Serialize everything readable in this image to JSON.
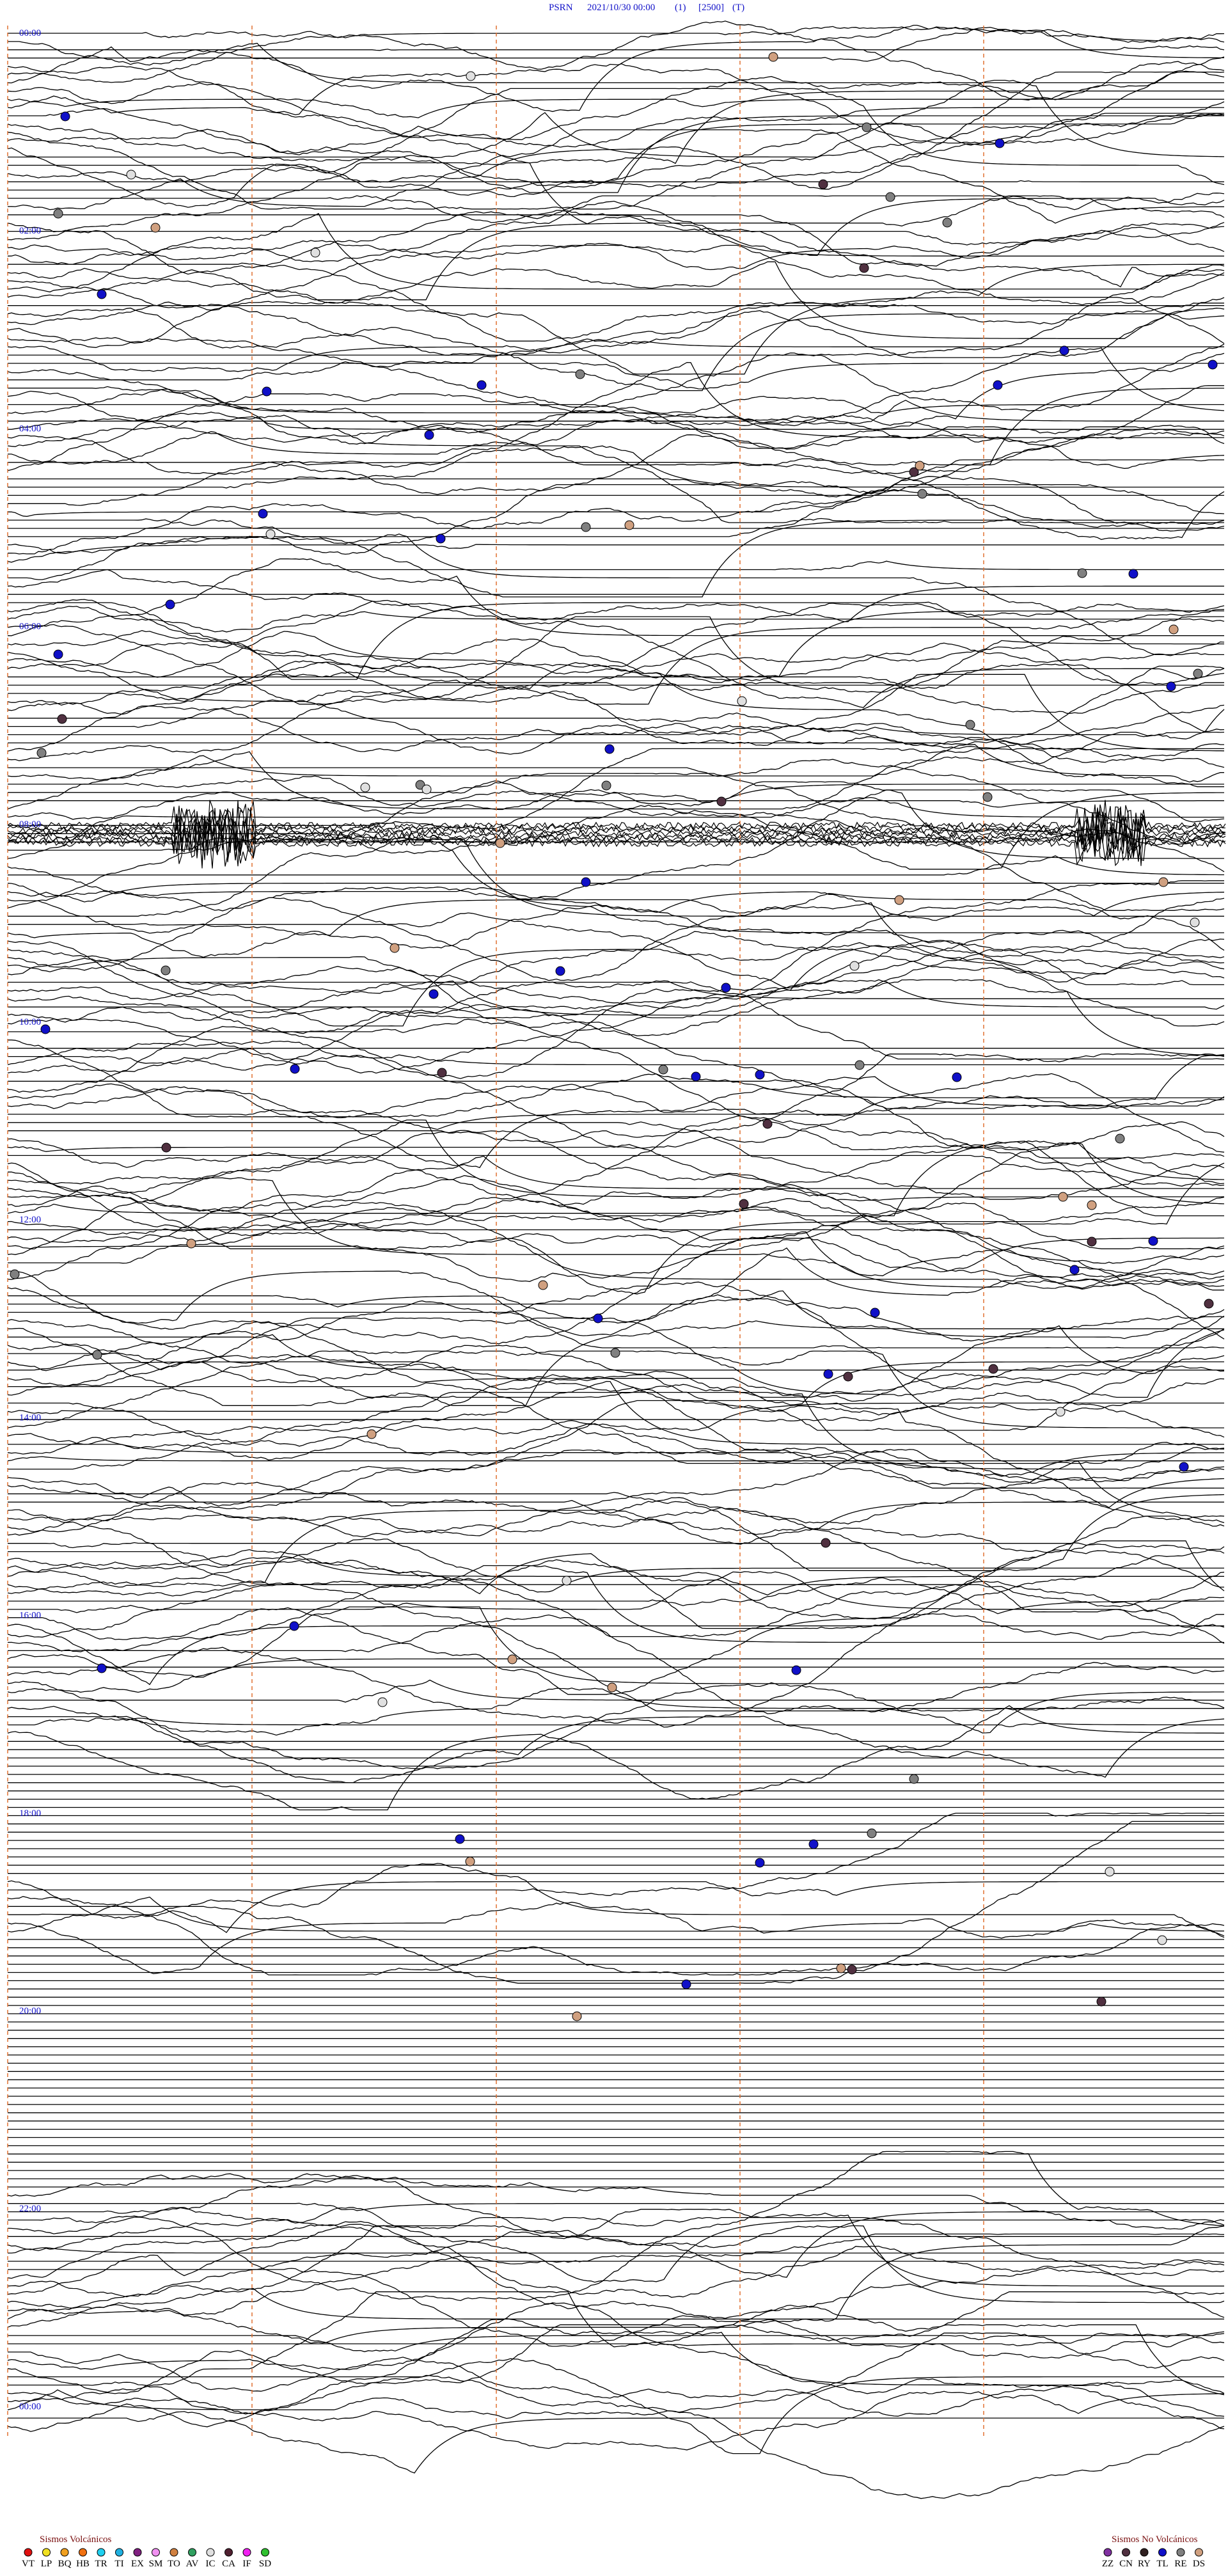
{
  "header": {
    "station": "PSRN",
    "datetime": "2021/10/30 00:00",
    "filter": "(1)",
    "scale": "[2500]",
    "mode": "(T)"
  },
  "time_labels": [
    "00:00",
    "02:00",
    "04:00",
    "06:00",
    "08:00",
    "10:00",
    "12:00",
    "14:00",
    "16:00",
    "18:00",
    "20:00",
    "22:00",
    "00:00"
  ],
  "legend": {
    "volcanic": {
      "title": "Sismos Volcánicos",
      "items": [
        {
          "code": "VT",
          "color": "#e01010"
        },
        {
          "code": "LP",
          "color": "#f0e020"
        },
        {
          "code": "BQ",
          "color": "#f0a020"
        },
        {
          "code": "HB",
          "color": "#f07010"
        },
        {
          "code": "TR",
          "color": "#20d0f0"
        },
        {
          "code": "TI",
          "color": "#20b0e0"
        },
        {
          "code": "EX",
          "color": "#802080"
        },
        {
          "code": "SM",
          "color": "#f090f0"
        },
        {
          "code": "TO",
          "color": "#d08040"
        },
        {
          "code": "AV",
          "color": "#30a060"
        },
        {
          "code": "IC",
          "color": "#e0e0e0"
        },
        {
          "code": "CA",
          "color": "#502030"
        },
        {
          "code": "IF",
          "color": "#f020f0"
        },
        {
          "code": "SD",
          "color": "#30c030"
        }
      ]
    },
    "non_volcanic": {
      "title": "Sismos No Volcánicos",
      "items": [
        {
          "code": "ZZ",
          "color": "#8030a0"
        },
        {
          "code": "CN",
          "color": "#503040"
        },
        {
          "code": "RY",
          "color": "#302020"
        },
        {
          "code": "TL",
          "color": "#1010c8"
        },
        {
          "code": "RE",
          "color": "#808080"
        },
        {
          "code": "DS",
          "color": "#d0a080"
        }
      ]
    }
  }
}
